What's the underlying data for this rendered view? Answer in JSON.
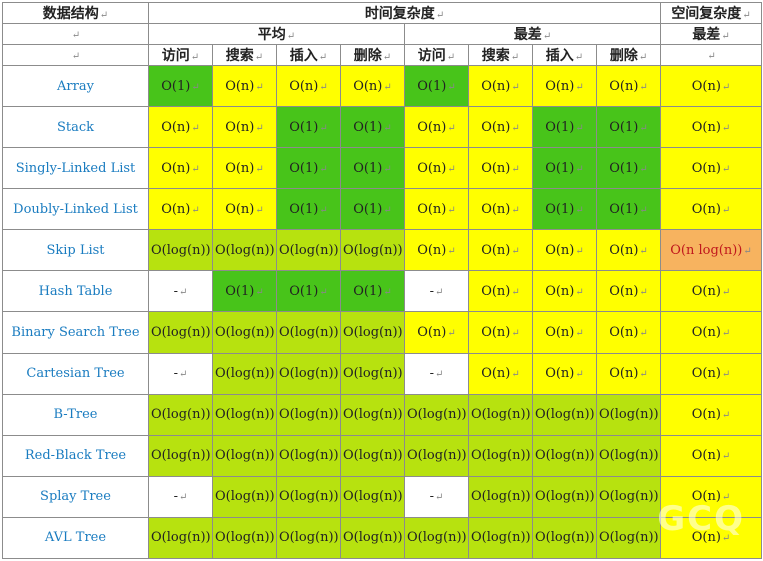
{
  "colors": {
    "best": "#48c41a",
    "good": "#b7e20f",
    "fair": "#ffff00",
    "bad": "#f7b35f",
    "none": "#ffffff",
    "name_text": "#1a7cc0",
    "bad_text": "#c0181d"
  },
  "mark": "↵",
  "header": {
    "structure": "数据结构",
    "time": "时间复杂度",
    "space": "空间复杂度",
    "average": "平均",
    "worst": "最差",
    "space_worst": "最差",
    "ops": [
      "访问",
      "搜索",
      "插入",
      "删除"
    ]
  },
  "rows": [
    {
      "name": "Array",
      "cells": [
        [
          "O(1)",
          "g"
        ],
        [
          "O(n)",
          "y"
        ],
        [
          "O(n)",
          "y"
        ],
        [
          "O(n)",
          "y"
        ],
        [
          "O(1)",
          "g"
        ],
        [
          "O(n)",
          "y"
        ],
        [
          "O(n)",
          "y"
        ],
        [
          "O(n)",
          "y"
        ],
        [
          "O(n)",
          "y"
        ]
      ]
    },
    {
      "name": "Stack",
      "cells": [
        [
          "O(n)",
          "y"
        ],
        [
          "O(n)",
          "y"
        ],
        [
          "O(1)",
          "g"
        ],
        [
          "O(1)",
          "g"
        ],
        [
          "O(n)",
          "y"
        ],
        [
          "O(n)",
          "y"
        ],
        [
          "O(1)",
          "g"
        ],
        [
          "O(1)",
          "g"
        ],
        [
          "O(n)",
          "y"
        ]
      ]
    },
    {
      "name": "Singly-Linked List",
      "cells": [
        [
          "O(n)",
          "y"
        ],
        [
          "O(n)",
          "y"
        ],
        [
          "O(1)",
          "g"
        ],
        [
          "O(1)",
          "g"
        ],
        [
          "O(n)",
          "y"
        ],
        [
          "O(n)",
          "y"
        ],
        [
          "O(1)",
          "g"
        ],
        [
          "O(1)",
          "g"
        ],
        [
          "O(n)",
          "y"
        ]
      ]
    },
    {
      "name": "Doubly-Linked List",
      "cells": [
        [
          "O(n)",
          "y"
        ],
        [
          "O(n)",
          "y"
        ],
        [
          "O(1)",
          "g"
        ],
        [
          "O(1)",
          "g"
        ],
        [
          "O(n)",
          "y"
        ],
        [
          "O(n)",
          "y"
        ],
        [
          "O(1)",
          "g"
        ],
        [
          "O(1)",
          "g"
        ],
        [
          "O(n)",
          "y"
        ]
      ]
    },
    {
      "name": "Skip List",
      "cells": [
        [
          "O(log(n))",
          "lg"
        ],
        [
          "O(log(n))",
          "lg"
        ],
        [
          "O(log(n))",
          "lg"
        ],
        [
          "O(log(n))",
          "lg"
        ],
        [
          "O(n)",
          "y"
        ],
        [
          "O(n)",
          "y"
        ],
        [
          "O(n)",
          "y"
        ],
        [
          "O(n)",
          "y"
        ],
        [
          "O(n log(n))",
          "o"
        ]
      ]
    },
    {
      "name": "Hash Table",
      "cells": [
        [
          "-",
          "w"
        ],
        [
          "O(1)",
          "g"
        ],
        [
          "O(1)",
          "g"
        ],
        [
          "O(1)",
          "g"
        ],
        [
          "-",
          "w"
        ],
        [
          "O(n)",
          "y"
        ],
        [
          "O(n)",
          "y"
        ],
        [
          "O(n)",
          "y"
        ],
        [
          "O(n)",
          "y"
        ]
      ]
    },
    {
      "name": "Binary Search Tree",
      "cells": [
        [
          "O(log(n))",
          "lg"
        ],
        [
          "O(log(n))",
          "lg"
        ],
        [
          "O(log(n))",
          "lg"
        ],
        [
          "O(log(n))",
          "lg"
        ],
        [
          "O(n)",
          "y"
        ],
        [
          "O(n)",
          "y"
        ],
        [
          "O(n)",
          "y"
        ],
        [
          "O(n)",
          "y"
        ],
        [
          "O(n)",
          "y"
        ]
      ]
    },
    {
      "name": "Cartesian Tree",
      "cells": [
        [
          "-",
          "w"
        ],
        [
          "O(log(n))",
          "lg"
        ],
        [
          "O(log(n))",
          "lg"
        ],
        [
          "O(log(n))",
          "lg"
        ],
        [
          "-",
          "w"
        ],
        [
          "O(n)",
          "y"
        ],
        [
          "O(n)",
          "y"
        ],
        [
          "O(n)",
          "y"
        ],
        [
          "O(n)",
          "y"
        ]
      ]
    },
    {
      "name": "B-Tree",
      "cells": [
        [
          "O(log(n))",
          "lg"
        ],
        [
          "O(log(n))",
          "lg"
        ],
        [
          "O(log(n))",
          "lg"
        ],
        [
          "O(log(n))",
          "lg"
        ],
        [
          "O(log(n))",
          "lg"
        ],
        [
          "O(log(n))",
          "lg"
        ],
        [
          "O(log(n))",
          "lg"
        ],
        [
          "O(log(n))",
          "lg"
        ],
        [
          "O(n)",
          "y"
        ]
      ]
    },
    {
      "name": "Red-Black Tree",
      "cells": [
        [
          "O(log(n))",
          "lg"
        ],
        [
          "O(log(n))",
          "lg"
        ],
        [
          "O(log(n))",
          "lg"
        ],
        [
          "O(log(n))",
          "lg"
        ],
        [
          "O(log(n))",
          "lg"
        ],
        [
          "O(log(n))",
          "lg"
        ],
        [
          "O(log(n))",
          "lg"
        ],
        [
          "O(log(n))",
          "lg"
        ],
        [
          "O(n)",
          "y"
        ]
      ]
    },
    {
      "name": "Splay Tree",
      "cells": [
        [
          "-",
          "w"
        ],
        [
          "O(log(n))",
          "lg"
        ],
        [
          "O(log(n))",
          "lg"
        ],
        [
          "O(log(n))",
          "lg"
        ],
        [
          "-",
          "w"
        ],
        [
          "O(log(n))",
          "lg"
        ],
        [
          "O(log(n))",
          "lg"
        ],
        [
          "O(log(n))",
          "lg"
        ],
        [
          "O(n)",
          "y"
        ]
      ]
    },
    {
      "name": "AVL Tree",
      "cells": [
        [
          "O(log(n))",
          "lg"
        ],
        [
          "O(log(n))",
          "lg"
        ],
        [
          "O(log(n))",
          "lg"
        ],
        [
          "O(log(n))",
          "lg"
        ],
        [
          "O(log(n))",
          "lg"
        ],
        [
          "O(log(n))",
          "lg"
        ],
        [
          "O(log(n))",
          "lg"
        ],
        [
          "O(log(n))",
          "lg"
        ],
        [
          "O(n)",
          "y"
        ]
      ]
    }
  ],
  "watermark": "GCQ"
}
